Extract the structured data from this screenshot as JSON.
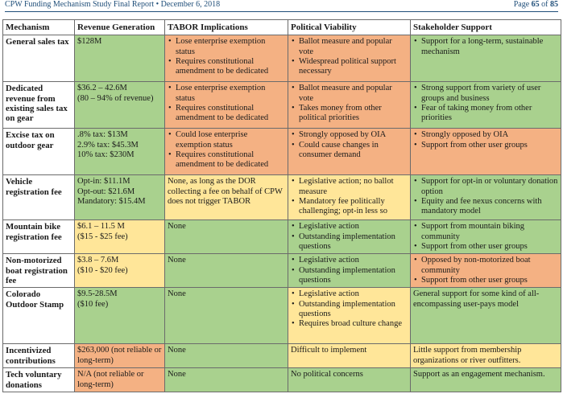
{
  "header": {
    "title": "CPW Funding Mechanism Study Final Report • December 6, 2018",
    "page_prefix": "Page",
    "page_num": "65",
    "page_mid": "of",
    "page_total": "85"
  },
  "columns": [
    "Mechanism",
    "Revenue Generation",
    "TABOR Implications",
    "Political Viability",
    "Stakeholder Support"
  ],
  "rows": [
    {
      "mechanism": "General sales tax",
      "revenue": {
        "lines": [
          "$128M"
        ],
        "color": "g"
      },
      "tabor": {
        "bullets": [
          "Lose enterprise exemption status",
          "Requires constitutional amendment to be dedicated"
        ],
        "color": "o"
      },
      "political": {
        "bullets": [
          "Ballot measure and popular vote",
          "Widespread political support necessary"
        ],
        "color": "o"
      },
      "stakeholder": {
        "bullets": [
          "Support for a long-term, sustainable mechanism"
        ],
        "color": "g"
      }
    },
    {
      "mechanism": "Dedicated revenue from existing sales tax on gear",
      "revenue": {
        "lines": [
          "$36.2 – 42.6M",
          "(80 – 94% of revenue)"
        ],
        "color": "g"
      },
      "tabor": {
        "bullets": [
          "Lose enterprise exemption status",
          "Requires constitutional amendment to be dedicated"
        ],
        "color": "o"
      },
      "political": {
        "bullets": [
          "Ballot measure and popular vote",
          "Takes money from other political priorities"
        ],
        "color": "o"
      },
      "stakeholder": {
        "bullets": [
          "Strong support from variety of user groups and business",
          "Fear of taking money from other priorities"
        ],
        "color": "g"
      }
    },
    {
      "mechanism": "Excise tax on outdoor gear",
      "revenue": {
        "lines": [
          ".8% tax: $13M",
          "2.9% tax: $45.3M",
          "10% tax: $230M"
        ],
        "color": "g"
      },
      "tabor": {
        "bullets": [
          "Could lose enterprise exemption status",
          "Requires constitutional amendment to be dedicated"
        ],
        "color": "o"
      },
      "political": {
        "bullets": [
          "Strongly opposed by OIA",
          "Could cause changes in consumer demand"
        ],
        "color": "o"
      },
      "stakeholder": {
        "bullets": [
          "Strongly opposed by OIA",
          "Support from other user groups"
        ],
        "color": "o"
      }
    },
    {
      "mechanism": "Vehicle registration fee",
      "revenue": {
        "lines": [
          "Opt-in: $11.1M",
          "Opt-out: $21.6M",
          "Mandatory: $15.4M"
        ],
        "color": "g"
      },
      "tabor": {
        "lines": [
          "None, as long as the DOR collecting a fee on behalf of CPW does not trigger TABOR"
        ],
        "color": "y"
      },
      "political": {
        "bullets": [
          "Legislative action; no ballot measure",
          "Mandatory fee politically challenging; opt-in less so"
        ],
        "color": "y"
      },
      "stakeholder": {
        "bullets": [
          "Support for opt-in or voluntary donation option",
          "Equity and fee nexus concerns with mandatory model"
        ],
        "color": "g"
      }
    },
    {
      "mechanism": "Mountain bike registration fee",
      "revenue": {
        "lines": [
          "$6.1 – 11.5 M",
          "($15 - $25 fee)"
        ],
        "color": "y"
      },
      "tabor": {
        "lines": [
          "None"
        ],
        "color": "g"
      },
      "political": {
        "bullets": [
          "Legislative action",
          "Outstanding implementation questions"
        ],
        "color": "g"
      },
      "stakeholder": {
        "bullets": [
          "Support from mountain biking community",
          "Support from other user groups"
        ],
        "color": "g"
      }
    },
    {
      "mechanism": "Non-motorized boat registration fee",
      "revenue": {
        "lines": [
          "$3.8 – 7.6M",
          "($10 - $20 fee)"
        ],
        "color": "y"
      },
      "tabor": {
        "lines": [
          "None"
        ],
        "color": "g"
      },
      "political": {
        "bullets": [
          "Legislative action",
          "Outstanding implementation questions"
        ],
        "color": "g"
      },
      "stakeholder": {
        "bullets": [
          "Opposed by non-motorized boat community",
          "Support from other user groups"
        ],
        "color": "o"
      }
    },
    {
      "mechanism": "Colorado Outdoor Stamp",
      "revenue": {
        "lines": [
          "$9.5-28.5M",
          "($10 fee)"
        ],
        "color": "g"
      },
      "tabor": {
        "lines": [
          "None"
        ],
        "color": "g"
      },
      "political": {
        "bullets": [
          "Legislative action",
          "Outstanding implementation questions",
          "Requires broad culture change"
        ],
        "color": "y"
      },
      "stakeholder": {
        "lines": [
          "General support for some kind of all-encompassing user-pays model"
        ],
        "color": "g"
      }
    },
    {
      "mechanism": "Incentivized contributions",
      "revenue": {
        "lines": [
          "$263,000 (not reliable or long-term)"
        ],
        "color": "o"
      },
      "tabor": {
        "lines": [
          "None"
        ],
        "color": "g"
      },
      "political": {
        "lines": [
          "Difficult to implement"
        ],
        "color": "y"
      },
      "stakeholder": {
        "lines": [
          "Little support from membership organizations or river outfitters."
        ],
        "color": "y"
      }
    },
    {
      "mechanism": "Tech voluntary donations",
      "revenue": {
        "lines": [
          "N/A (not reliable or long-term)"
        ],
        "color": "o"
      },
      "tabor": {
        "lines": [
          "None"
        ],
        "color": "g"
      },
      "political": {
        "lines": [
          "No political concerns"
        ],
        "color": "g"
      },
      "stakeholder": {
        "lines": [
          "Support as an engagement mechanism."
        ],
        "color": "g"
      }
    }
  ]
}
